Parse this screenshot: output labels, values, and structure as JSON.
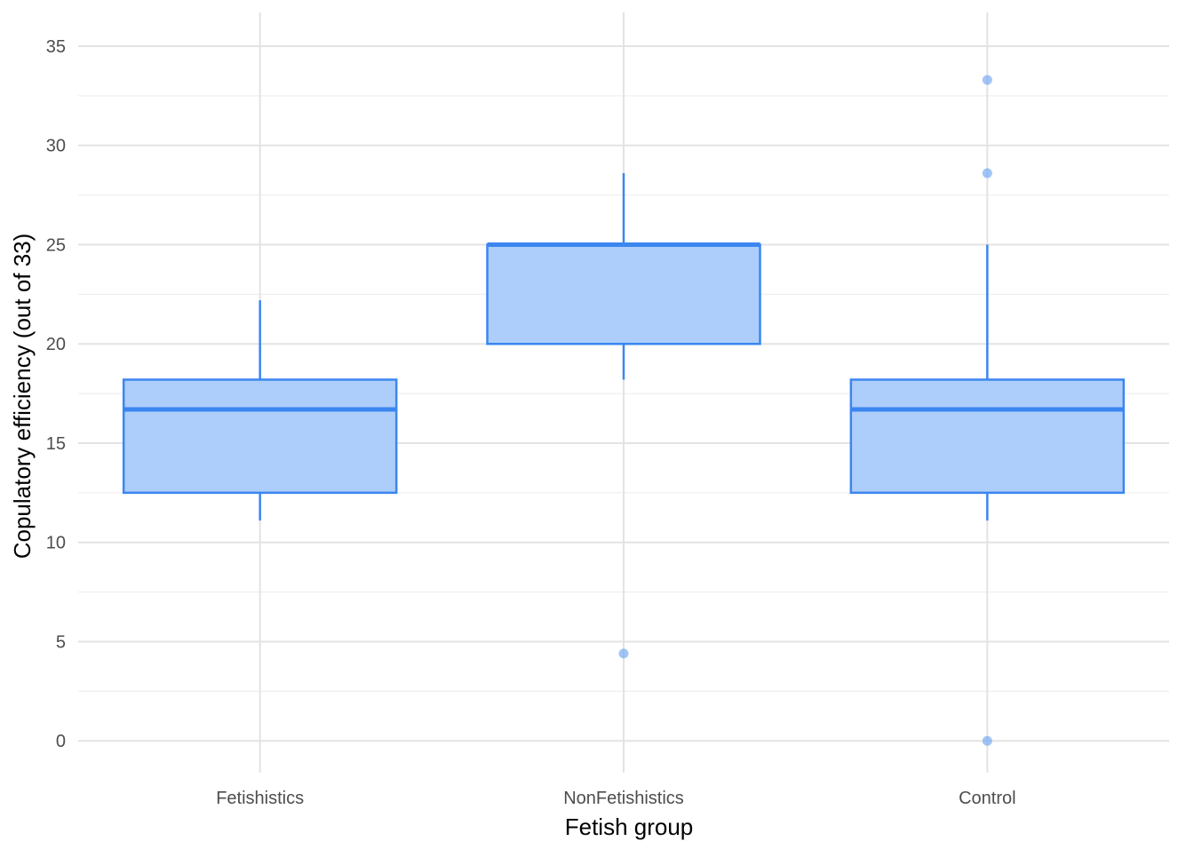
{
  "chart_data": {
    "type": "box",
    "title": "",
    "xlabel": "Fetish group",
    "ylabel": "Copulatory efficiency (out of 33)",
    "ylim": [
      -1.6,
      36.7
    ],
    "yticks": [
      0,
      5,
      10,
      15,
      20,
      25,
      30,
      35
    ],
    "grid": true,
    "categories": [
      "Fetishistics",
      "NonFetishistics",
      "Control"
    ],
    "boxes": [
      {
        "category": "Fetishistics",
        "whisker_low": 11.1,
        "q1": 12.5,
        "median": 16.7,
        "q3": 18.2,
        "whisker_high": 22.2,
        "outliers": []
      },
      {
        "category": "NonFetishistics",
        "whisker_low": 18.2,
        "q1": 20.0,
        "median": 25.0,
        "q3": 25.0,
        "whisker_high": 28.6,
        "outliers": [
          4.4
        ]
      },
      {
        "category": "Control",
        "whisker_low": 11.1,
        "q1": 12.5,
        "median": 16.7,
        "q3": 18.2,
        "whisker_high": 25.0,
        "outliers": [
          33.3,
          28.6,
          0.0
        ]
      }
    ],
    "colors": {
      "stroke": "#3b86f0",
      "fill": "#a9cbfa",
      "grid_major": "#e3e3e3",
      "grid_minor": "#efefef",
      "outlier": "#6fa6f2"
    }
  }
}
